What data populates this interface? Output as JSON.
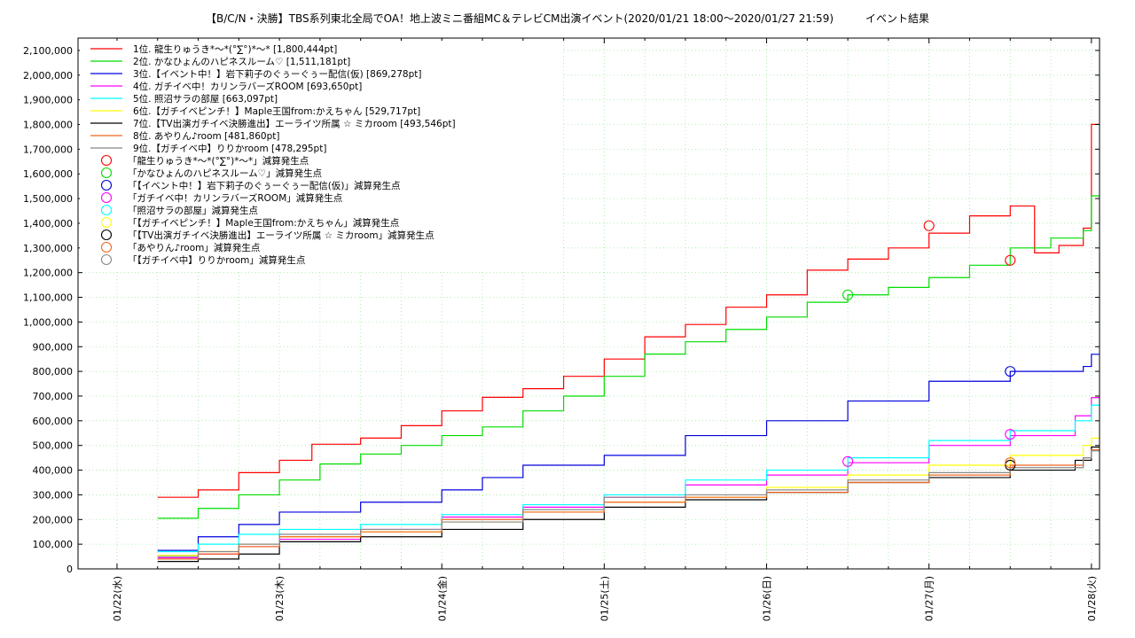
{
  "chart_data": {
    "type": "line",
    "title": "【B/C/N・決勝】TBS系列東北全局でOA！地上波ミニ番組MC＆テレビCM出演イベント(2020/01/21 18:00〜2020/01/27 21:59)　　　イベント結果",
    "xlabel": "",
    "ylabel": "",
    "x_ticks": [
      "01/22(水)",
      "01/23(木)",
      "01/24(金)",
      "01/25(土)",
      "01/26(日)",
      "01/27(月)",
      "01/28(火)"
    ],
    "xlim": [
      -0.24,
      6.05
    ],
    "ylim": [
      0,
      2150000
    ],
    "y_ticks": [
      0,
      100000,
      200000,
      300000,
      400000,
      500000,
      600000,
      700000,
      800000,
      900000,
      1000000,
      1100000,
      1200000,
      1300000,
      1400000,
      1500000,
      1600000,
      1700000,
      1800000,
      1900000,
      2000000,
      2100000
    ],
    "y_tick_labels": [
      "0",
      "100,000",
      "200,000",
      "300,000",
      "400,000",
      "500,000",
      "600,000",
      "700,000",
      "800,000",
      "900,000",
      "1,000,000",
      "1,100,000",
      "1,200,000",
      "1,300,000",
      "1,400,000",
      "1,500,000",
      "1,600,000",
      "1,700,000",
      "1,800,000",
      "1,900,000",
      "2,000,000",
      "2,100,000"
    ],
    "grid": true,
    "legend_position": "top-left",
    "series": [
      {
        "name": "1位. 龍生りゅうき*〜*(°∑°)*〜* [1,800,444pt]",
        "color": "#ff0000",
        "x": [
          0.25,
          0.5,
          0.75,
          1.0,
          1.2,
          1.5,
          1.75,
          2.0,
          2.25,
          2.5,
          2.75,
          3.0,
          3.25,
          3.5,
          3.75,
          4.0,
          4.25,
          4.5,
          4.75,
          5.0,
          5.25,
          5.4,
          5.5,
          5.65,
          5.8,
          5.95,
          6.0,
          6.05
        ],
        "y": [
          290000,
          320000,
          390000,
          440000,
          505000,
          530000,
          580000,
          640000,
          695000,
          730000,
          780000,
          850000,
          940000,
          990000,
          1060000,
          1110000,
          1210000,
          1255000,
          1300000,
          1360000,
          1430000,
          1430000,
          1470000,
          1280000,
          1310000,
          1380000,
          1800444,
          1800444
        ]
      },
      {
        "name": "2位. かなひょんのハピネスルーム♡ [1,511,181pt]",
        "color": "#00dd00",
        "x": [
          0.25,
          0.5,
          0.75,
          1.0,
          1.25,
          1.5,
          1.75,
          2.0,
          2.25,
          2.5,
          2.75,
          3.0,
          3.25,
          3.5,
          3.75,
          4.0,
          4.25,
          4.5,
          4.75,
          5.0,
          5.25,
          5.5,
          5.75,
          5.95,
          6.0,
          6.05
        ],
        "y": [
          205000,
          245000,
          300000,
          360000,
          425000,
          465000,
          500000,
          540000,
          575000,
          640000,
          700000,
          780000,
          870000,
          920000,
          970000,
          1020000,
          1080000,
          1110000,
          1140000,
          1180000,
          1230000,
          1300000,
          1340000,
          1370000,
          1511181,
          1511181
        ]
      },
      {
        "name": "3位.【イベント中！】岩下莉子のぐぅーぐぅー配信(仮) [869,278pt]",
        "color": "#0000dd",
        "x": [
          0.25,
          0.5,
          0.75,
          1.0,
          1.5,
          2.0,
          2.25,
          2.5,
          3.0,
          3.5,
          4.0,
          4.5,
          5.0,
          5.5,
          5.95,
          6.0,
          6.05
        ],
        "y": [
          75000,
          130000,
          180000,
          230000,
          270000,
          320000,
          370000,
          420000,
          460000,
          540000,
          600000,
          680000,
          760000,
          800000,
          820000,
          869278,
          869278
        ]
      },
      {
        "name": "4位. ガチイベ中！カリンラバーズROOM [693,650pt]",
        "color": "#ff00ff",
        "x": [
          0.25,
          0.5,
          0.75,
          1.0,
          1.5,
          2.0,
          2.5,
          3.0,
          3.5,
          4.0,
          4.5,
          5.0,
          5.5,
          5.9,
          6.0,
          6.05
        ],
        "y": [
          45000,
          60000,
          90000,
          120000,
          160000,
          210000,
          250000,
          290000,
          340000,
          380000,
          430000,
          500000,
          540000,
          620000,
          693650,
          693650
        ]
      },
      {
        "name": "5位. 照沼サラの部屋 [663,097pt]",
        "color": "#00ffff",
        "x": [
          0.25,
          0.5,
          0.75,
          1.0,
          1.5,
          2.0,
          2.5,
          3.0,
          3.5,
          4.0,
          4.5,
          5.0,
          5.5,
          5.9,
          6.0,
          6.05
        ],
        "y": [
          70000,
          100000,
          140000,
          160000,
          180000,
          220000,
          260000,
          300000,
          360000,
          400000,
          450000,
          520000,
          560000,
          600000,
          663097,
          663097
        ]
      },
      {
        "name": "6位.【ガチイベピンチ！】Maple王国from:かえちゃん [529,717pt]",
        "color": "#ffff00",
        "x": [
          0.25,
          0.5,
          0.75,
          1.0,
          1.5,
          2.0,
          2.5,
          3.0,
          3.5,
          4.0,
          4.5,
          5.0,
          5.5,
          5.95,
          6.0,
          6.05
        ],
        "y": [
          55000,
          70000,
          100000,
          130000,
          150000,
          190000,
          230000,
          270000,
          290000,
          330000,
          380000,
          420000,
          460000,
          500000,
          529717,
          529717
        ]
      },
      {
        "name": "7位.【TV出演ガチイベ決勝進出】エーライツ所属 ☆ ミカroom [493,546pt]",
        "color": "#000000",
        "x": [
          0.25,
          0.5,
          0.75,
          1.0,
          1.5,
          2.0,
          2.5,
          3.0,
          3.5,
          4.0,
          4.5,
          5.0,
          5.5,
          5.9,
          6.0,
          6.05
        ],
        "y": [
          30000,
          40000,
          60000,
          110000,
          130000,
          160000,
          200000,
          250000,
          280000,
          310000,
          350000,
          370000,
          400000,
          440000,
          493546,
          493546
        ]
      },
      {
        "name": "8位. あやりん♪room [481,860pt]",
        "color": "#ee6622",
        "x": [
          0.25,
          0.5,
          0.75,
          1.0,
          1.5,
          2.0,
          2.5,
          3.0,
          3.5,
          4.0,
          4.5,
          5.0,
          5.5,
          5.95,
          6.0,
          6.05
        ],
        "y": [
          40000,
          60000,
          90000,
          130000,
          150000,
          200000,
          230000,
          270000,
          290000,
          310000,
          350000,
          380000,
          420000,
          450000,
          481860,
          481860
        ]
      },
      {
        "name": "9位.【ガチイベ中】りりかroom [478,295pt]",
        "color": "#888888",
        "x": [
          0.25,
          0.5,
          0.75,
          1.0,
          1.5,
          2.0,
          2.5,
          3.0,
          3.5,
          4.0,
          4.5,
          5.0,
          5.5,
          5.95,
          6.0,
          6.05
        ],
        "y": [
          50000,
          70000,
          100000,
          140000,
          160000,
          190000,
          240000,
          290000,
          300000,
          320000,
          360000,
          390000,
          410000,
          450000,
          478295,
          478295
        ]
      }
    ],
    "drop_points": [
      {
        "name": "「龍生りゅうき*〜*(°∑°)*〜*」減算発生点",
        "color": "#ff0000",
        "points": [
          {
            "x": 5.0,
            "y": 1390000
          },
          {
            "x": 5.5,
            "y": 1250000
          }
        ]
      },
      {
        "name": "「かなひょんのハピネスルーム♡」減算発生点",
        "color": "#00dd00",
        "points": [
          {
            "x": 4.5,
            "y": 1110000
          }
        ]
      },
      {
        "name": "「【イベント中！】岩下莉子のぐぅーぐぅー配信(仮)」減算発生点",
        "color": "#0000dd",
        "points": [
          {
            "x": 5.5,
            "y": 800000
          }
        ]
      },
      {
        "name": "「ガチイベ中！カリンラバーズROOM」減算発生点",
        "color": "#ff00ff",
        "points": [
          {
            "x": 4.5,
            "y": 435000
          },
          {
            "x": 5.5,
            "y": 545000
          }
        ]
      },
      {
        "name": "「照沼サラの部屋」減算発生点",
        "color": "#00ffff",
        "points": []
      },
      {
        "name": "「【ガチイベピンチ！】Maple王国from:かえちゃん」減算発生点",
        "color": "#ffff00",
        "points": []
      },
      {
        "name": "「【TV出演ガチイベ決勝進出】エーライツ所属 ☆ ミカroom」減算発生点",
        "color": "#000000",
        "points": [
          {
            "x": 5.5,
            "y": 420000
          }
        ]
      },
      {
        "name": "「あやりん♪room」減算発生点",
        "color": "#ee6622",
        "points": [
          {
            "x": 5.5,
            "y": 430000
          }
        ]
      },
      {
        "name": "「【ガチイベ中】りりかroom」減算発生点",
        "color": "#888888",
        "points": []
      }
    ]
  }
}
